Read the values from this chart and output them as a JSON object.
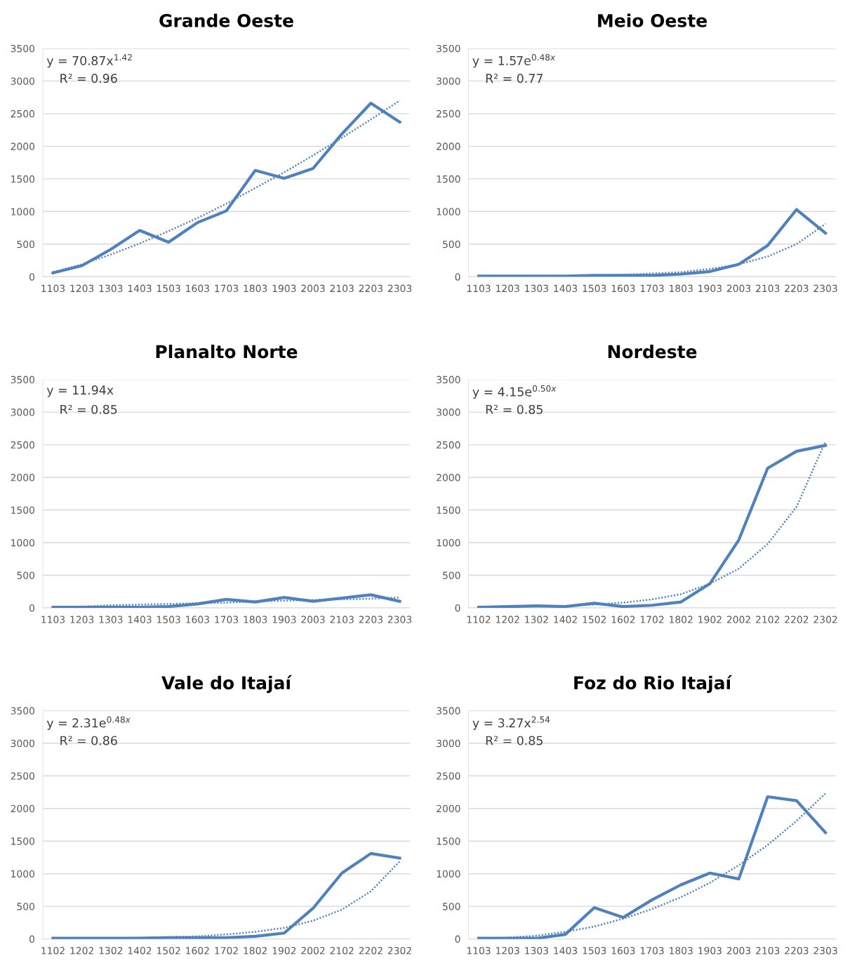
{
  "chart_data": [
    {
      "type": "line",
      "title": "Grande Oeste",
      "categories": [
        "1103",
        "1203",
        "1303",
        "1403",
        "1503",
        "1603",
        "1703",
        "1803",
        "1903",
        "2003",
        "2103",
        "2203",
        "2303"
      ],
      "ylim": [
        0,
        3500
      ],
      "yticks": [
        0,
        500,
        1000,
        1500,
        2000,
        2500,
        3000,
        3500
      ],
      "grid": "y",
      "annotations": [
        "y = 70.87x$^{1.42}$",
        "R² = 0.96"
      ],
      "series": [
        {
          "color": "#4f81bd",
          "line_style": "solid",
          "values": [
            60,
            170,
            420,
            710,
            530,
            830,
            1010,
            1630,
            1510,
            1660,
            2190,
            2660,
            2370
          ]
        },
        {
          "color": "#4f81bd",
          "line_style": "dotted",
          "values": [
            70,
            190,
            340,
            510,
            700,
            900,
            1120,
            1360,
            1600,
            1860,
            2130,
            2410,
            2700
          ]
        }
      ]
    },
    {
      "type": "line",
      "title": "Meio Oeste",
      "categories": [
        "1103",
        "1203",
        "1303",
        "1403",
        "1503",
        "1603",
        "1703",
        "1803",
        "1903",
        "2003",
        "2103",
        "2203",
        "2303"
      ],
      "ylim": [
        0,
        3500
      ],
      "yticks": [
        0,
        500,
        1000,
        1500,
        2000,
        2500,
        3000,
        3500
      ],
      "grid": "y",
      "annotations": [
        "y = 1.57e$^{0.48x}$",
        "R² = 0.77"
      ],
      "series": [
        {
          "color": "#4f81bd",
          "line_style": "solid",
          "values": [
            10,
            10,
            10,
            10,
            20,
            20,
            20,
            40,
            80,
            190,
            480,
            1030,
            670
          ]
        },
        {
          "color": "#4f81bd",
          "line_style": "dotted",
          "values": [
            0,
            0,
            10,
            10,
            20,
            30,
            50,
            70,
            120,
            190,
            310,
            500,
            810
          ]
        }
      ]
    },
    {
      "type": "line",
      "title": "Planalto Norte",
      "categories": [
        "1103",
        "1203",
        "1303",
        "1403",
        "1503",
        "1603",
        "1703",
        "1803",
        "1903",
        "2003",
        "2103",
        "2203",
        "2303"
      ],
      "ylim": [
        0,
        3500
      ],
      "yticks": [
        0,
        500,
        1000,
        1500,
        2000,
        2500,
        3000,
        3500
      ],
      "grid": "y",
      "annotations": [
        "y = 11.94x",
        "R² = 0.85"
      ],
      "series": [
        {
          "color": "#4f81bd",
          "line_style": "solid",
          "values": [
            10,
            10,
            10,
            10,
            20,
            60,
            130,
            90,
            160,
            100,
            150,
            200,
            100
          ]
        },
        {
          "color": "#4f81bd",
          "line_style": "dotted",
          "values": [
            10,
            20,
            40,
            50,
            60,
            70,
            80,
            100,
            110,
            120,
            130,
            140,
            160
          ]
        }
      ]
    },
    {
      "type": "line",
      "title": "Nordeste",
      "categories": [
        "1102",
        "1202",
        "1302",
        "1402",
        "1502",
        "1602",
        "1702",
        "1802",
        "1902",
        "2002",
        "2102",
        "2202",
        "2302"
      ],
      "ylim": [
        0,
        3500
      ],
      "yticks": [
        0,
        500,
        1000,
        1500,
        2000,
        2500,
        3000,
        3500
      ],
      "grid": "y",
      "annotations": [
        "y = 4.15e$^{0.50x}$",
        "R² = 0.85"
      ],
      "series": [
        {
          "color": "#4f81bd",
          "line_style": "solid",
          "values": [
            10,
            20,
            30,
            20,
            70,
            20,
            40,
            90,
            370,
            1040,
            2140,
            2400,
            2490
          ]
        },
        {
          "color": "#4f81bd",
          "line_style": "dotted",
          "values": [
            10,
            10,
            20,
            30,
            50,
            80,
            130,
            210,
            370,
            600,
            980,
            1550,
            2550
          ]
        }
      ]
    },
    {
      "type": "line",
      "title": "Vale do Itajaí",
      "categories": [
        "1102",
        "1202",
        "1302",
        "1402",
        "1502",
        "1602",
        "1702",
        "1802",
        "1902",
        "2002",
        "2102",
        "2202",
        "2302"
      ],
      "ylim": [
        0,
        3500
      ],
      "yticks": [
        0,
        500,
        1000,
        1500,
        2000,
        2500,
        3000,
        3500
      ],
      "grid": "y",
      "annotations": [
        "y = 2.31e$^{0.48x}$",
        "R² = 0.86"
      ],
      "series": [
        {
          "color": "#4f81bd",
          "line_style": "solid",
          "values": [
            10,
            10,
            10,
            10,
            20,
            20,
            20,
            40,
            90,
            470,
            1010,
            1310,
            1240
          ]
        },
        {
          "color": "#4f81bd",
          "line_style": "dotted",
          "values": [
            0,
            10,
            10,
            20,
            30,
            40,
            70,
            110,
            170,
            280,
            450,
            730,
            1190
          ]
        }
      ]
    },
    {
      "type": "line",
      "title": "Foz do Rio Itajaí",
      "categories": [
        "1103",
        "1203",
        "1303",
        "1403",
        "1503",
        "1603",
        "1703",
        "1803",
        "1903",
        "2003",
        "2103",
        "2203",
        "2303"
      ],
      "ylim": [
        0,
        3500
      ],
      "yticks": [
        0,
        500,
        1000,
        1500,
        2000,
        2500,
        3000,
        3500
      ],
      "grid": "y",
      "annotations": [
        "y = 3.27x$^{2.54}$",
        "R² = 0.85"
      ],
      "series": [
        {
          "color": "#4f81bd",
          "line_style": "solid",
          "values": [
            10,
            10,
            10,
            70,
            480,
            330,
            600,
            830,
            1010,
            920,
            2180,
            2120,
            1630
          ]
        },
        {
          "color": "#4f81bd",
          "line_style": "dotted",
          "values": [
            0,
            20,
            50,
            110,
            190,
            310,
            460,
            640,
            860,
            1130,
            1440,
            1810,
            2230
          ]
        }
      ]
    }
  ]
}
